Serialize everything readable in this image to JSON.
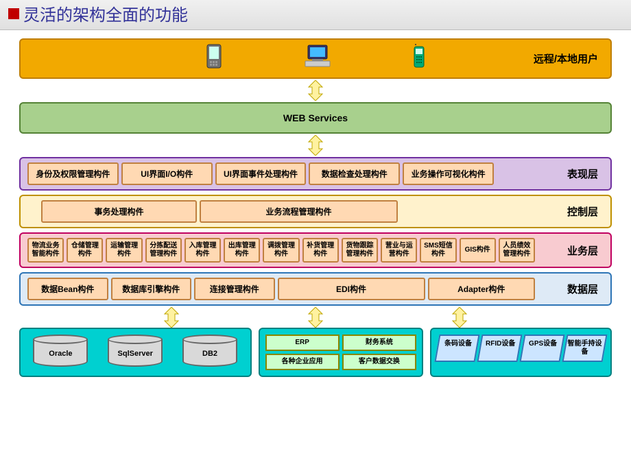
{
  "title": "灵活的架构全面的功能",
  "layers": {
    "client": {
      "bg": "#f2a900",
      "border": "#bf7e00",
      "label": "远程/本地用户",
      "icons": [
        "pda",
        "desktop",
        "phone"
      ]
    },
    "web": {
      "bg": "#a8d08d",
      "border": "#548235",
      "label": "WEB Services"
    },
    "presentation": {
      "bg": "#d9c2e6",
      "border": "#7030a0",
      "label": "表现层",
      "boxes": [
        "身份及权限管理构件",
        "UI界面I/O构件",
        "UI界面事件处理构件",
        "数据检查处理构件",
        "业务操作可视化构件"
      ]
    },
    "control": {
      "bg": "#fff2cc",
      "border": "#bf9000",
      "label": "控制层",
      "boxes": [
        "事务处理构件",
        "业务流程管理构件"
      ]
    },
    "business": {
      "bg": "#f8cbd0",
      "border": "#c00060",
      "label": "业务层",
      "boxes": [
        "物流业务智能构件",
        "仓储管理构件",
        "运输管理构件",
        "分拣配送管理构件",
        "入库管理构件",
        "出库管理构件",
        "调拨管理构件",
        "补货管理构件",
        "货物跟踪管理构件",
        "营业与运营构件",
        "SMS短信构件",
        "GIS构件",
        "人员绩效管理构件"
      ]
    },
    "data": {
      "bg": "#deeaf6",
      "border": "#2e75b6",
      "label": "数据层",
      "boxes": [
        "数据Bean构件",
        "数据库引擎构件",
        "连接管理构件",
        "EDI构件",
        "Adapter构件"
      ]
    }
  },
  "bottom": {
    "db": {
      "bg": "#00d0d0",
      "border": "#008080",
      "items": [
        "Oracle",
        "SqlServer",
        "DB2"
      ]
    },
    "apps": {
      "bg": "#00d0d0",
      "border": "#008080",
      "items": [
        "ERP",
        "财务系统",
        "各种企业应用",
        "客户数据交换"
      ]
    },
    "devices": {
      "bg": "#00d0d0",
      "border": "#008080",
      "items": [
        "条码设备",
        "RFID设备",
        "GPS设备",
        "智能手持设备"
      ]
    }
  },
  "arrow": {
    "fill": "#fff2a0",
    "stroke": "#bfa500"
  },
  "box_style": {
    "fill": "#ffd9b3",
    "border": "#c08040"
  }
}
